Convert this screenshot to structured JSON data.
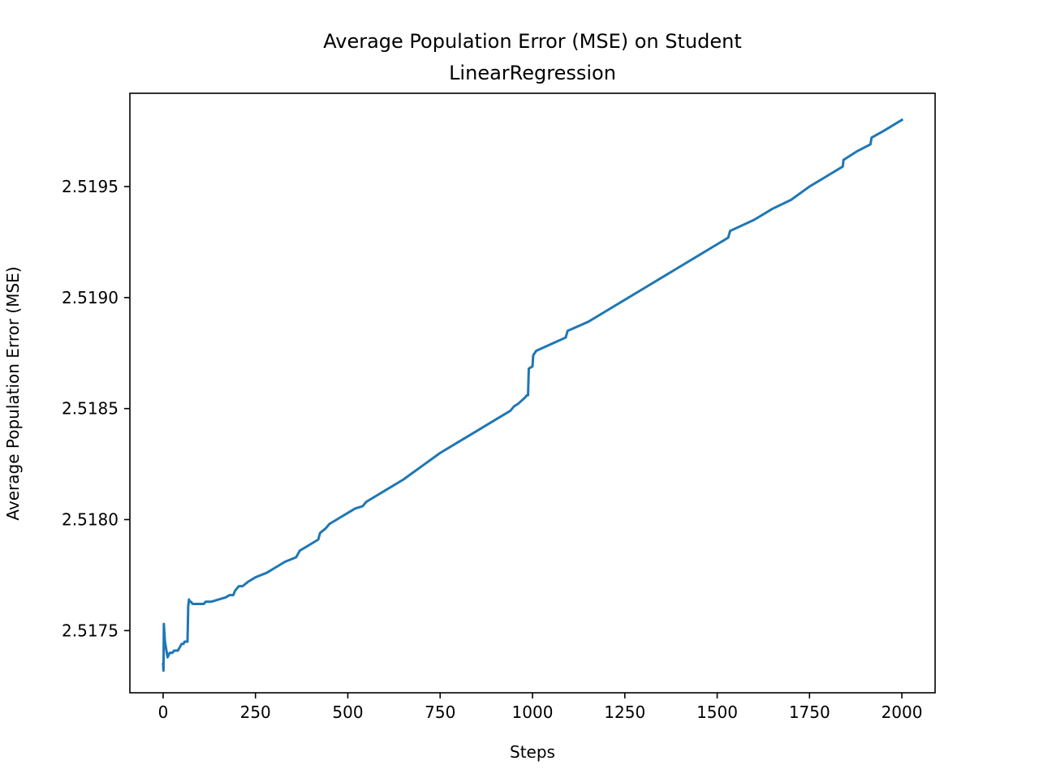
{
  "chart_data": {
    "type": "line",
    "title_lines": [
      "Average Population Error (MSE) on Student",
      "LinearRegression"
    ],
    "xlabel": "Steps",
    "ylabel": "Average Population Error (MSE)",
    "xlim": [
      -90,
      2090
    ],
    "ylim": [
      2.51722,
      2.51992
    ],
    "xticks": [
      0,
      250,
      500,
      750,
      1000,
      1250,
      1500,
      1750,
      2000
    ],
    "xtick_labels": [
      "0",
      "250",
      "500",
      "750",
      "1000",
      "1250",
      "1500",
      "1750",
      "2000"
    ],
    "yticks": [
      2.5175,
      2.518,
      2.5185,
      2.519,
      2.5195
    ],
    "ytick_labels": [
      "2.5175",
      "2.5180",
      "2.5185",
      "2.5190",
      "2.5195"
    ],
    "grid": false,
    "series": [
      {
        "color": "#1f77b4",
        "x": [
          0,
          1,
          2,
          3,
          5,
          8,
          12,
          18,
          25,
          30,
          40,
          50,
          55,
          58,
          62,
          66,
          68,
          70,
          72,
          75,
          80,
          90,
          100,
          110,
          115,
          120,
          130,
          150,
          170,
          180,
          190,
          195,
          205,
          215,
          230,
          250,
          280,
          300,
          330,
          360,
          370,
          390,
          400,
          420,
          425,
          440,
          450,
          480,
          510,
          520,
          540,
          550,
          560,
          600,
          650,
          700,
          750,
          800,
          850,
          900,
          940,
          950,
          960,
          980,
          985,
          988,
          990,
          1000,
          1002,
          1010,
          1050,
          1090,
          1095,
          1150,
          1200,
          1250,
          1300,
          1350,
          1400,
          1450,
          1500,
          1530,
          1535,
          1600,
          1650,
          1700,
          1750,
          1800,
          1840,
          1842,
          1880,
          1915,
          1918,
          1950,
          2000
        ],
        "y": [
          2.51735,
          2.51732,
          2.51753,
          2.5175,
          2.51745,
          2.51742,
          2.51738,
          2.5174,
          2.5174,
          2.51741,
          2.51741,
          2.51744,
          2.51744,
          2.51745,
          2.51745,
          2.51745,
          2.51761,
          2.51764,
          2.51763,
          2.51763,
          2.51762,
          2.51762,
          2.51762,
          2.51762,
          2.51763,
          2.51763,
          2.51763,
          2.51764,
          2.51765,
          2.51766,
          2.51766,
          2.51768,
          2.5177,
          2.5177,
          2.51772,
          2.51774,
          2.51776,
          2.51778,
          2.51781,
          2.51783,
          2.51786,
          2.51788,
          2.51789,
          2.51791,
          2.51794,
          2.51796,
          2.51798,
          2.51801,
          2.51804,
          2.51805,
          2.51806,
          2.51808,
          2.51809,
          2.51813,
          2.51818,
          2.51824,
          2.5183,
          2.51835,
          2.5184,
          2.51845,
          2.51849,
          2.51851,
          2.51852,
          2.51855,
          2.51856,
          2.51856,
          2.51868,
          2.51869,
          2.51874,
          2.51876,
          2.51879,
          2.51882,
          2.51885,
          2.51889,
          2.51894,
          2.51899,
          2.51904,
          2.51909,
          2.51914,
          2.51919,
          2.51924,
          2.51927,
          2.5193,
          2.51935,
          2.5194,
          2.51944,
          2.5195,
          2.51955,
          2.51959,
          2.51962,
          2.51966,
          2.51969,
          2.51972,
          2.51975,
          2.5198
        ]
      }
    ]
  }
}
